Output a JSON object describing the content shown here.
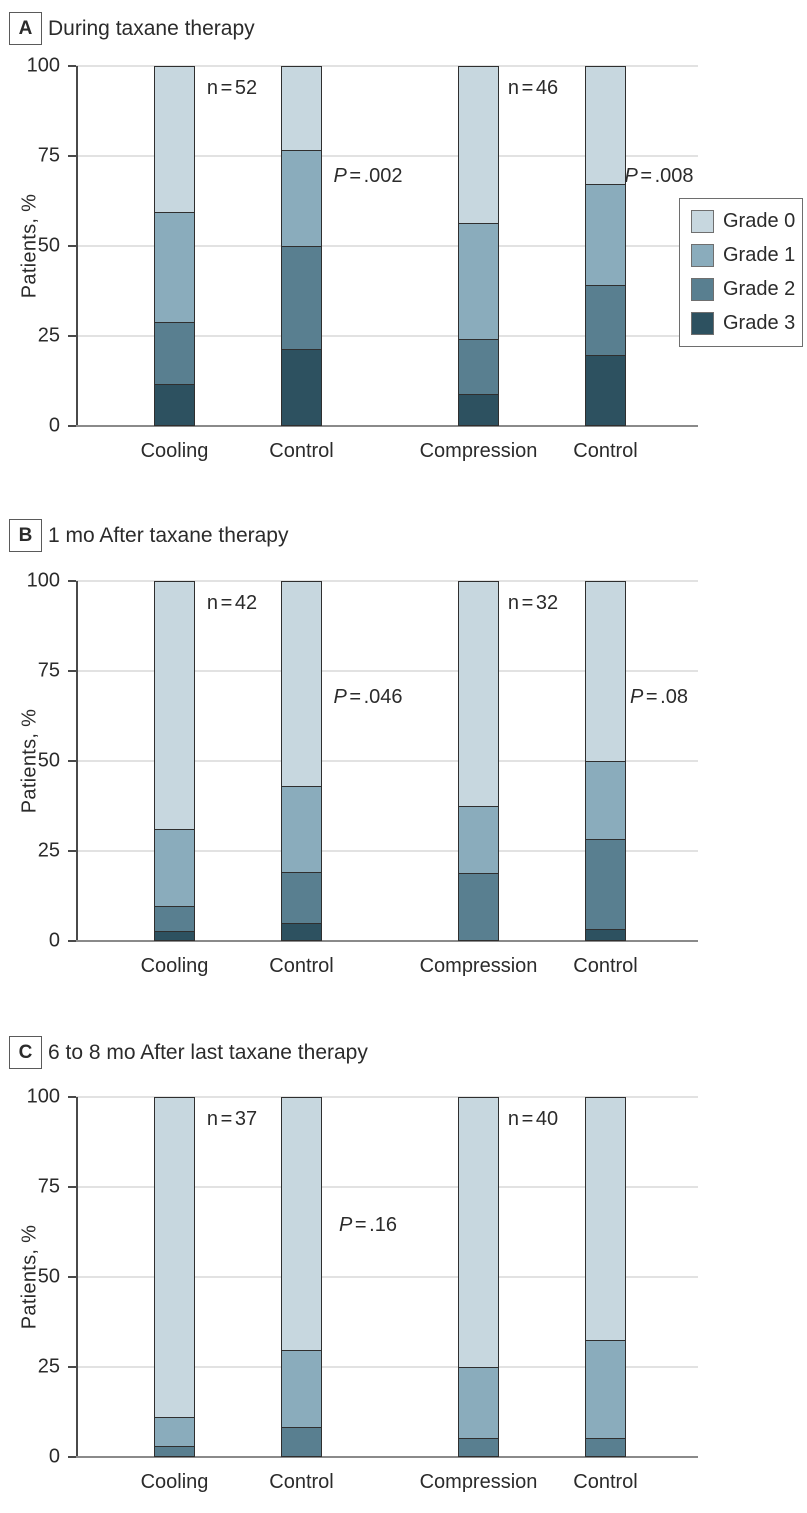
{
  "figure": {
    "description_labels": {
      "y_axis_title": "Patients, %"
    },
    "colors": {
      "grade0": "#c7d7df",
      "grade1": "#8aacbc",
      "grade2": "#597f90",
      "grade3": "#2d5160",
      "bar_border": "#2f2f2f",
      "gridline": "#e2e2e2",
      "axis": "#4a4a4a",
      "text": "#2b2b2b"
    }
  },
  "legend": {
    "items": [
      {
        "label": "Grade 0",
        "color": "#c7d7df"
      },
      {
        "label": "Grade 1",
        "color": "#8aacbc"
      },
      {
        "label": "Grade 2",
        "color": "#597f90"
      },
      {
        "label": "Grade 3",
        "color": "#2d5160"
      }
    ]
  },
  "chart_data": [
    {
      "type": "bar",
      "stacked": true,
      "panel": "A",
      "title": "During taxane therapy",
      "ylabel": "Patients, %",
      "ylim": [
        0,
        100
      ],
      "yticks": [
        0,
        25,
        50,
        75,
        100
      ],
      "grid": true,
      "legend_visible": true,
      "legend_position": "right",
      "categories": [
        "Cooling",
        "Control",
        "Compression",
        "Control"
      ],
      "series": [
        {
          "name": "Grade 0",
          "values": [
            40.4,
            23.1,
            43.5,
            32.6
          ]
        },
        {
          "name": "Grade 1",
          "values": [
            30.8,
            26.9,
            32.6,
            28.3
          ]
        },
        {
          "name": "Grade 2",
          "values": [
            17.3,
            28.8,
            15.2,
            19.6
          ]
        },
        {
          "name": "Grade 3",
          "values": [
            11.5,
            21.2,
            8.7,
            19.6
          ]
        }
      ],
      "annotations": {
        "n_first_pair": "n = 52",
        "n_second_pair": "n = 46",
        "p_first_pair": "P = .002",
        "p_second_pair": "P = .008"
      }
    },
    {
      "type": "bar",
      "stacked": true,
      "panel": "B",
      "title": "1 mo After taxane therapy",
      "ylabel": "Patients, %",
      "ylim": [
        0,
        100
      ],
      "yticks": [
        0,
        25,
        50,
        75,
        100
      ],
      "grid": true,
      "legend_visible": false,
      "categories": [
        "Cooling",
        "Control",
        "Compression",
        "Control"
      ],
      "series": [
        {
          "name": "Grade 0",
          "values": [
            69.0,
            57.1,
            62.5,
            50.0
          ]
        },
        {
          "name": "Grade 1",
          "values": [
            21.4,
            23.8,
            18.8,
            21.9
          ]
        },
        {
          "name": "Grade 2",
          "values": [
            7.1,
            14.3,
            18.8,
            25.0
          ]
        },
        {
          "name": "Grade 3",
          "values": [
            2.4,
            4.8,
            0,
            3.1
          ]
        }
      ],
      "annotations": {
        "n_first_pair": "n = 42",
        "n_second_pair": "n = 32",
        "p_first_pair": "P = .046",
        "p_second_pair": "P = .08"
      }
    },
    {
      "type": "bar",
      "stacked": true,
      "panel": "C",
      "title": "6 to 8 mo After last taxane therapy",
      "ylabel": "Patients, %",
      "ylim": [
        0,
        100
      ],
      "yticks": [
        0,
        25,
        50,
        75,
        100
      ],
      "grid": true,
      "legend_visible": false,
      "categories": [
        "Cooling",
        "Control",
        "Compression",
        "Control"
      ],
      "series": [
        {
          "name": "Grade 0",
          "values": [
            89.2,
            70.3,
            75.0,
            67.5
          ]
        },
        {
          "name": "Grade 1",
          "values": [
            8.1,
            21.6,
            20.0,
            27.5
          ]
        },
        {
          "name": "Grade 2",
          "values": [
            2.7,
            8.1,
            5.0,
            5.0
          ]
        },
        {
          "name": "Grade 3",
          "values": [
            0,
            0,
            0,
            0
          ]
        }
      ],
      "annotations": {
        "n_first_pair": "n = 37",
        "n_second_pair": "n = 40",
        "p_first_pair": "P = .16",
        "p_second_pair": null
      }
    }
  ]
}
